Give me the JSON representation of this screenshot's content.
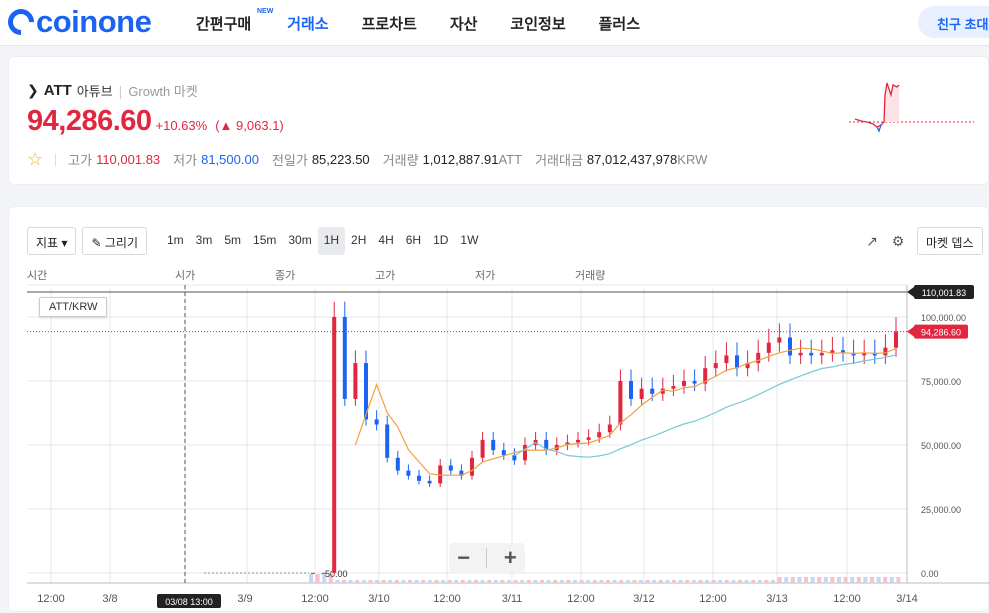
{
  "header": {
    "logo_text": "coinone",
    "nav": [
      {
        "label": "간편구매",
        "badge": "NEW"
      },
      {
        "label": "거래소"
      },
      {
        "label": "프로차트"
      },
      {
        "label": "자산"
      },
      {
        "label": "코인정보"
      },
      {
        "label": "플러스"
      }
    ],
    "invite_label": "친구 초대"
  },
  "ticker": {
    "symbol": "ATT",
    "name": "아튜브",
    "market": "Growth 마켓",
    "price": "94,286.60",
    "change_pct": "+10.63%",
    "change_value": "9,063.1",
    "stats": {
      "high_label": "고가",
      "high": "110,001.83",
      "low_label": "저가",
      "low": "81,500.00",
      "prev_label": "전일가",
      "prev": "85,223.50",
      "vol_label": "거래량",
      "vol": "1,012,887.91",
      "vol_unit": "ATT",
      "amt_label": "거래대금",
      "amt": "87,012,437,978",
      "amt_unit": "KRW"
    },
    "colors": {
      "up": "#e2263f",
      "down": "#1b64f2"
    }
  },
  "toolbar": {
    "indicator_label": "지표",
    "draw_label": "그리기",
    "timeframes": [
      "1m",
      "3m",
      "5m",
      "15m",
      "30m",
      "1H",
      "2H",
      "4H",
      "6H",
      "1D",
      "1W"
    ],
    "active_timeframe": "1H",
    "depth_label": "마켓 뎁스"
  },
  "ohlc_labels": [
    "시간",
    "시가",
    "종가",
    "고가",
    "저가",
    "거래량"
  ],
  "pair_label": "ATT/KRW",
  "chart_data": {
    "type": "candlestick",
    "y_ticks": [
      "100,000.00",
      "75,000.00",
      "50,000.00",
      "25,000.00",
      "0.00"
    ],
    "y_range": [
      0,
      110001.83
    ],
    "x_ticks": [
      "12:00",
      "3/8",
      "3/9",
      "12:00",
      "3/10",
      "12:00",
      "3/11",
      "12:00",
      "3/12",
      "12:00",
      "3/13",
      "12:00",
      "3/14"
    ],
    "crosshair_time": "03/08 13:00",
    "high_marker": "110,001.83",
    "price_marker": "94,286.60",
    "min_annotation": "50.00",
    "candles_close": [
      50,
      50,
      100000,
      68000,
      82000,
      60000,
      58000,
      45000,
      40000,
      38000,
      36000,
      35000,
      42000,
      40000,
      38000,
      45000,
      52000,
      48000,
      46000,
      44000,
      50000,
      52000,
      48000,
      50000,
      51000,
      52000,
      53000,
      55000,
      58000,
      75000,
      68000,
      72000,
      70000,
      72000,
      73000,
      75000,
      74000,
      80000,
      82000,
      85000,
      80000,
      82000,
      86000,
      90000,
      92000,
      85000,
      86000,
      85000,
      86000,
      87000,
      86000,
      85000,
      86000,
      85000,
      88000,
      94286
    ]
  }
}
